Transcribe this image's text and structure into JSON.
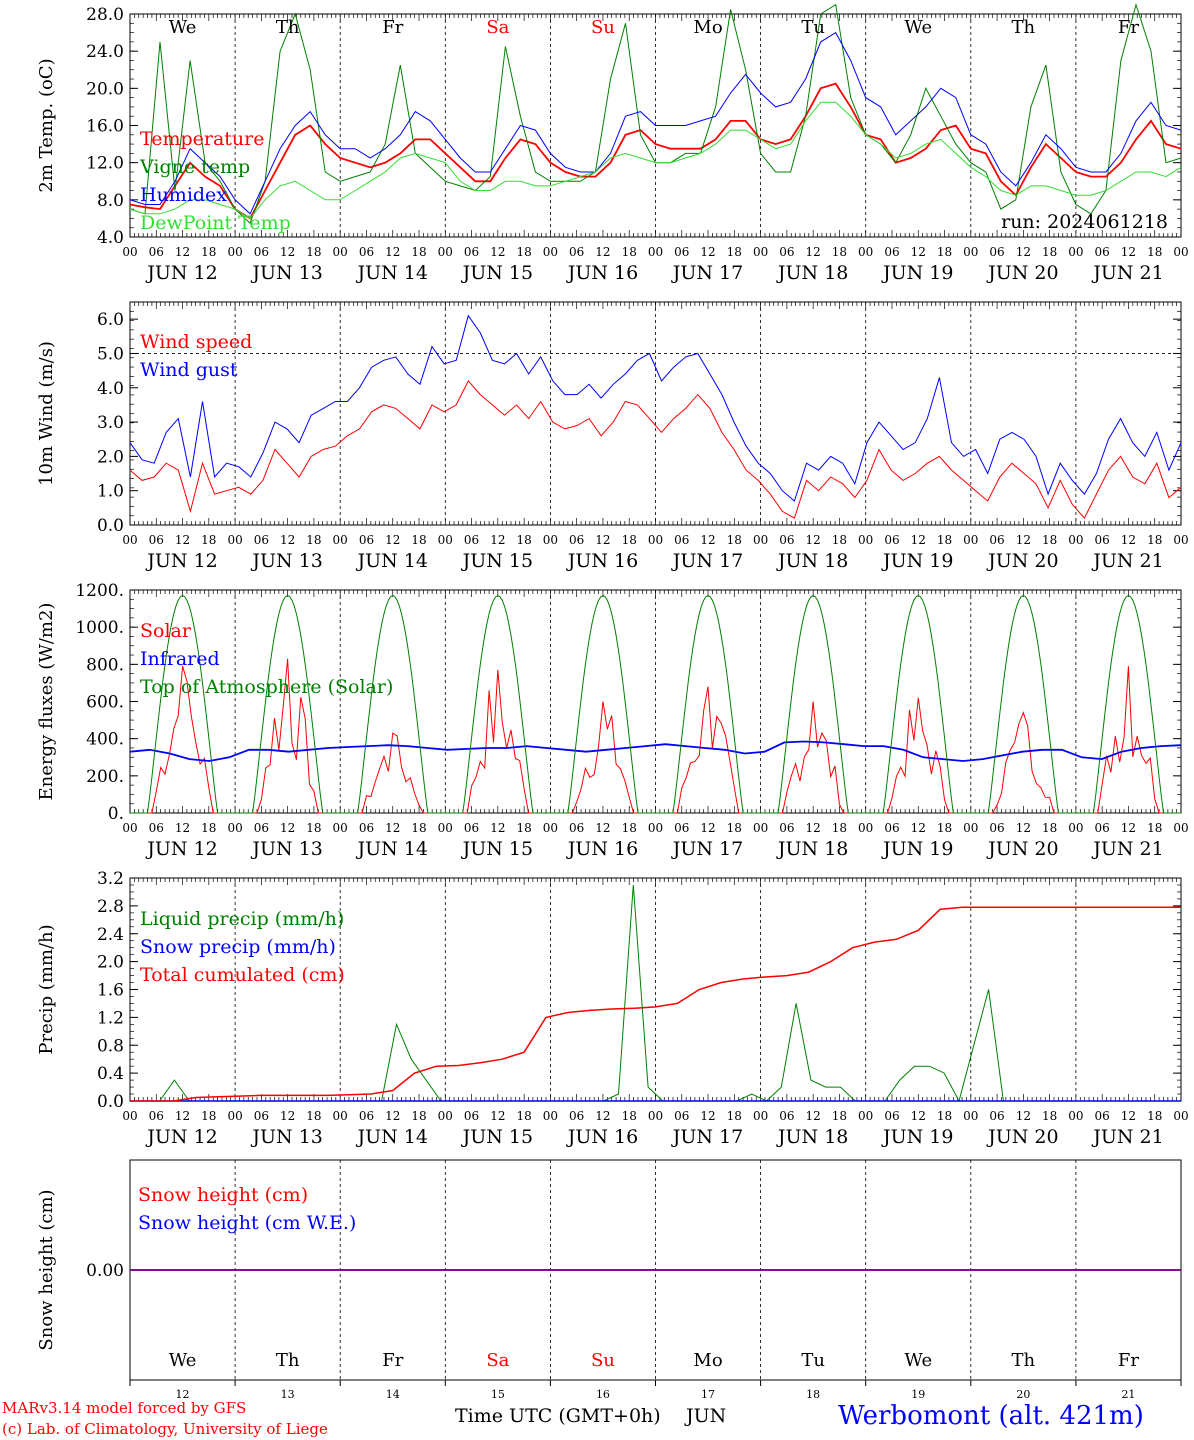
{
  "colors": {
    "red": "#ff0000",
    "green": "#008000",
    "blue": "#0000ff",
    "lightgreen": "#33dd33",
    "purple": "#800080"
  },
  "day_labels": [
    "JUN 12",
    "JUN 13",
    "JUN 14",
    "JUN 15",
    "JUN 16",
    "JUN 17",
    "JUN 18",
    "JUN 19",
    "JUN 20",
    "JUN 21"
  ],
  "weekdays": [
    "We",
    "Th",
    "Fr",
    "Sa",
    "Su",
    "Mo",
    "Tu",
    "We",
    "Th",
    "Fr"
  ],
  "weekend_index": [
    3,
    4
  ],
  "hour_ticks": [
    "00",
    "06",
    "12",
    "18"
  ],
  "day_numbers": [
    "12",
    "13",
    "14",
    "15",
    "16",
    "17",
    "18",
    "19",
    "20",
    "21"
  ],
  "footer": {
    "model": "MARv3.14 model forced by GFS",
    "copyright": "(c) Lab. of Climatology, University of Liege",
    "xlabel": "Time UTC (GMT+0h)",
    "month": "JUN",
    "station": "Werbomont (alt. 421m)"
  },
  "chart_data": [
    {
      "type": "line",
      "ylabel": "2m Temp. (oC)",
      "ylim": [
        4,
        28
      ],
      "yticks": [
        "4.0",
        "8.0",
        "12.0",
        "16.0",
        "20.0",
        "24.0",
        "28.0"
      ],
      "run_label": "run: 2024061218",
      "legend_placement": "left",
      "series": [
        {
          "name": "Temperature",
          "color": "#ff0000",
          "values": [
            7.5,
            7.2,
            7.0,
            9.5,
            12.0,
            10.5,
            9.5,
            7.0,
            6.0,
            9.0,
            12.0,
            15.0,
            16.0,
            14.0,
            12.5,
            12.0,
            11.5,
            12.0,
            13.0,
            14.5,
            14.5,
            13.0,
            11.5,
            10.0,
            10.0,
            12.5,
            14.5,
            14.0,
            12.0,
            11.0,
            10.5,
            10.5,
            12.0,
            15.0,
            15.5,
            14.0,
            13.5,
            13.5,
            13.5,
            14.5,
            16.5,
            16.5,
            14.5,
            14.0,
            14.5,
            17.0,
            20.0,
            20.5,
            18.0,
            15.0,
            14.5,
            12.0,
            12.5,
            13.5,
            15.5,
            16.0,
            13.5,
            13.0,
            10.0,
            8.5,
            11.5,
            14.0,
            12.5,
            11.0,
            10.5,
            10.5,
            12.0,
            14.5,
            16.5,
            14.0,
            13.5
          ]
        },
        {
          "name": "Vigne temp",
          "color": "#008000",
          "values": [
            7.0,
            6.5,
            25.0,
            9.0,
            23.0,
            12.0,
            10.0,
            7.0,
            5.5,
            10.0,
            24.0,
            28.0,
            22.0,
            11.0,
            10.0,
            10.5,
            11.0,
            14.0,
            22.5,
            13.0,
            11.5,
            10.0,
            9.5,
            9.0,
            10.5,
            24.5,
            17.0,
            11.0,
            10.0,
            10.0,
            10.0,
            11.0,
            21.0,
            27.0,
            15.0,
            12.0,
            12.0,
            13.0,
            13.0,
            18.0,
            28.5,
            22.0,
            13.0,
            11.0,
            11.0,
            17.0,
            28.0,
            29.0,
            19.0,
            15.0,
            14.0,
            12.0,
            15.0,
            20.0,
            17.0,
            14.0,
            12.0,
            11.0,
            7.0,
            8.0,
            18.0,
            22.5,
            11.0,
            7.5,
            6.5,
            9.0,
            23.0,
            29.0,
            24.0,
            12.0,
            12.5
          ]
        },
        {
          "name": "Humidex",
          "color": "#0000ff",
          "values": [
            8.0,
            7.5,
            7.5,
            10.0,
            13.5,
            12.0,
            10.5,
            8.0,
            6.5,
            10.0,
            13.5,
            16.0,
            17.5,
            15.0,
            13.5,
            13.5,
            12.5,
            13.5,
            15.0,
            17.5,
            16.5,
            14.5,
            12.5,
            11.0,
            11.0,
            13.5,
            16.0,
            15.5,
            13.0,
            11.5,
            11.0,
            11.0,
            13.0,
            17.0,
            17.5,
            16.0,
            16.0,
            16.0,
            16.5,
            17.0,
            19.5,
            21.5,
            19.5,
            18.0,
            18.5,
            21.0,
            25.0,
            26.0,
            23.0,
            19.0,
            18.0,
            15.0,
            16.5,
            18.0,
            20.0,
            19.0,
            15.0,
            14.0,
            11.0,
            9.5,
            12.0,
            15.0,
            13.5,
            11.5,
            11.0,
            11.0,
            13.0,
            16.5,
            18.5,
            16.0,
            15.5
          ]
        },
        {
          "name": "DewPoint Temp",
          "color": "#33dd33",
          "values": [
            7.0,
            6.5,
            6.5,
            7.0,
            8.0,
            8.0,
            7.5,
            7.0,
            6.0,
            8.0,
            9.5,
            10.0,
            9.0,
            8.0,
            8.0,
            9.0,
            10.0,
            11.0,
            12.5,
            13.0,
            12.5,
            12.0,
            10.0,
            9.0,
            9.0,
            10.0,
            10.0,
            9.5,
            9.5,
            10.0,
            10.5,
            11.0,
            12.5,
            13.0,
            12.5,
            12.0,
            12.0,
            12.5,
            13.0,
            14.0,
            15.5,
            15.5,
            14.5,
            13.5,
            14.0,
            16.5,
            18.5,
            18.5,
            17.0,
            15.0,
            14.0,
            12.5,
            13.0,
            14.0,
            14.5,
            13.0,
            11.5,
            10.5,
            9.0,
            8.5,
            9.5,
            9.5,
            9.0,
            8.5,
            8.5,
            9.0,
            10.0,
            11.0,
            11.0,
            10.5,
            11.5
          ]
        }
      ]
    },
    {
      "type": "line",
      "ylabel": "10m Wind (m/s)",
      "ylim": [
        0,
        6.5
      ],
      "yticks": [
        "0.0",
        "1.0",
        "2.0",
        "3.0",
        "4.0",
        "5.0",
        "6.0"
      ],
      "hline": 5.0,
      "legend_placement": "left",
      "series": [
        {
          "name": "Wind speed",
          "color": "#ff0000",
          "values": [
            1.6,
            1.3,
            1.4,
            1.8,
            1.6,
            0.4,
            1.8,
            0.9,
            1.0,
            1.1,
            0.9,
            1.3,
            2.2,
            1.8,
            1.4,
            2.0,
            2.2,
            2.3,
            2.6,
            2.8,
            3.3,
            3.5,
            3.4,
            3.1,
            2.8,
            3.5,
            3.3,
            3.5,
            4.2,
            3.8,
            3.5,
            3.2,
            3.5,
            3.1,
            3.6,
            3.0,
            2.8,
            2.9,
            3.1,
            2.6,
            3.0,
            3.6,
            3.5,
            3.1,
            2.7,
            3.1,
            3.4,
            3.8,
            3.4,
            2.7,
            2.2,
            1.6,
            1.3,
            0.9,
            0.4,
            0.2,
            1.3,
            1.0,
            1.4,
            1.2,
            0.8,
            1.3,
            2.2,
            1.6,
            1.3,
            1.5,
            1.8,
            2.0,
            1.6,
            1.3,
            1.0,
            0.7,
            1.4,
            1.8,
            1.5,
            1.2,
            0.5,
            1.3,
            0.6,
            0.2,
            0.9,
            1.6,
            2.0,
            1.4,
            1.2,
            1.8,
            0.8,
            1.1
          ]
        },
        {
          "name": "Wind gust",
          "color": "#0000ff",
          "values": [
            2.4,
            1.9,
            1.8,
            2.7,
            3.1,
            1.4,
            3.6,
            1.4,
            1.8,
            1.7,
            1.4,
            2.1,
            3.0,
            2.8,
            2.4,
            3.2,
            3.4,
            3.6,
            3.6,
            4.0,
            4.6,
            4.8,
            4.9,
            4.4,
            4.1,
            5.2,
            4.7,
            4.8,
            6.1,
            5.6,
            4.8,
            4.7,
            5.0,
            4.4,
            4.9,
            4.2,
            3.8,
            3.8,
            4.1,
            3.7,
            4.1,
            4.4,
            4.8,
            5.0,
            4.2,
            4.6,
            4.9,
            5.0,
            4.4,
            3.8,
            3.0,
            2.3,
            1.8,
            1.5,
            1.0,
            0.7,
            1.8,
            1.6,
            2.0,
            1.8,
            1.2,
            2.4,
            3.0,
            2.6,
            2.2,
            2.4,
            3.1,
            4.3,
            2.4,
            2.0,
            2.2,
            1.5,
            2.5,
            2.7,
            2.5,
            2.0,
            0.9,
            1.8,
            1.3,
            0.9,
            1.5,
            2.5,
            3.1,
            2.4,
            2.0,
            2.7,
            1.6,
            2.4
          ]
        }
      ]
    },
    {
      "type": "line",
      "ylabel": "Energy fluxes (W/m2)",
      "ylim": [
        0,
        1200
      ],
      "yticks": [
        "0.",
        "200.",
        "400.",
        "600.",
        "800.",
        "1000.",
        "1200."
      ],
      "legend_placement": "left",
      "series": [
        {
          "name": "Solar",
          "color": "#ff0000",
          "daily_peaks": [
            790,
            830,
            430,
            770,
            600,
            680,
            600,
            620,
            540,
            790
          ]
        },
        {
          "name": "Infrared",
          "color": "#0000ff",
          "values": [
            330,
            340,
            320,
            290,
            280,
            300,
            340,
            340,
            330,
            340,
            350,
            355,
            360,
            365,
            360,
            350,
            340,
            345,
            350,
            350,
            360,
            350,
            340,
            330,
            340,
            350,
            360,
            370,
            360,
            350,
            340,
            320,
            330,
            380,
            385,
            380,
            370,
            360,
            360,
            340,
            300,
            290,
            280,
            290,
            310,
            330,
            340,
            340,
            300,
            290,
            330,
            350,
            360,
            365
          ]
        },
        {
          "name": "Top of Atmosphere (Solar)",
          "color": "#008000",
          "daily_peak": 1170
        }
      ]
    },
    {
      "type": "line",
      "ylabel": "Precip (mm/h)",
      "ylim": [
        0,
        3.2
      ],
      "yticks": [
        "0.0",
        "0.4",
        "0.8",
        "1.2",
        "1.6",
        "2.0",
        "2.4",
        "2.8",
        "3.2"
      ],
      "legend_placement": "left",
      "series": [
        {
          "name": "Liquid precip (mm/h)",
          "color": "#008000",
          "values": [
            0,
            0,
            0,
            0.3,
            0,
            0,
            0,
            0,
            0,
            0,
            0,
            0,
            0,
            0,
            0,
            0,
            0,
            0,
            1.1,
            0.6,
            0.3,
            0,
            0,
            0,
            0,
            0,
            0,
            0,
            0,
            0,
            0,
            0,
            0,
            0.1,
            3.1,
            0.2,
            0,
            0,
            0,
            0,
            0,
            0,
            0.1,
            0,
            0.2,
            1.4,
            0.3,
            0.2,
            0.2,
            0,
            0,
            0,
            0.3,
            0.5,
            0.5,
            0.4,
            0,
            0.8,
            1.6,
            0,
            0,
            0,
            0,
            0,
            0,
            0,
            0,
            0,
            0,
            0,
            0,
            0
          ]
        },
        {
          "name": "Snow precip (mm/h)",
          "color": "#0000ff",
          "values": [
            0,
            0
          ]
        },
        {
          "name": "Total cumulated (cm)",
          "color": "#ff0000",
          "values": [
            0,
            0,
            0,
            0.05,
            0.06,
            0.07,
            0.08,
            0.08,
            0.08,
            0.08,
            0.09,
            0.1,
            0.15,
            0.4,
            0.5,
            0.51,
            0.55,
            0.6,
            0.7,
            1.2,
            1.27,
            1.3,
            1.32,
            1.33,
            1.35,
            1.4,
            1.6,
            1.7,
            1.75,
            1.78,
            1.8,
            1.85,
            2.0,
            2.2,
            2.28,
            2.32,
            2.45,
            2.75,
            2.78,
            2.78,
            2.78,
            2.78,
            2.78,
            2.78,
            2.78,
            2.78,
            2.78,
            2.78,
            2.78
          ]
        }
      ]
    },
    {
      "type": "line",
      "ylabel": "Snow height (cm)",
      "yticks": [
        "0.00"
      ],
      "legend_placement": "left",
      "series": [
        {
          "name": "Snow height (cm)",
          "color": "#ff0000",
          "values": [
            0,
            0
          ]
        },
        {
          "name": "Snow height (cm W.E.)",
          "color": "#0000ff",
          "values": [
            0,
            0
          ]
        }
      ]
    }
  ]
}
